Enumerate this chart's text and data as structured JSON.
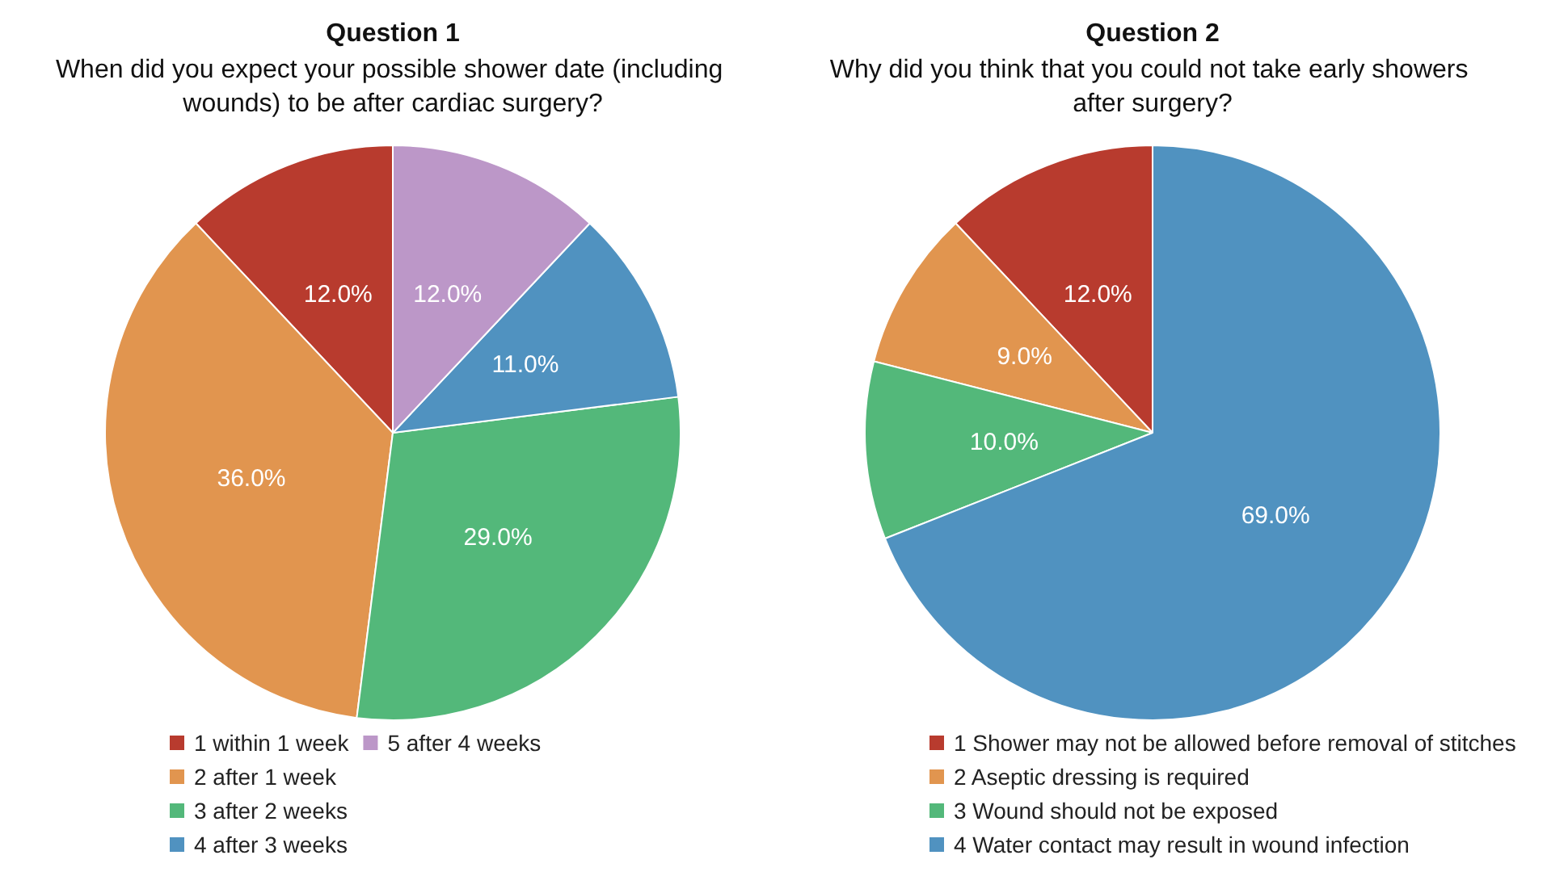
{
  "chart_data": [
    {
      "type": "pie",
      "title": "Question 1",
      "subtitle": "When did you expect your possible shower date (including wounds) to be after cardiac surgery?",
      "categories": [
        "1 within 1 week",
        "2 after 1 week",
        "3 after 2 weeks",
        "4 after 3 weeks",
        "5 after 4 weeks"
      ],
      "values": [
        12,
        36,
        29,
        11,
        12
      ],
      "colors": [
        "#b83b2e",
        "#e1954f",
        "#53b87a",
        "#5092c0",
        "#bc97c8"
      ],
      "value_labels": [
        "12.0%",
        "36.0%",
        "29.0%",
        "11.0%",
        "12.0%"
      ],
      "legend": "bottom"
    },
    {
      "type": "pie",
      "title": "Question 2",
      "subtitle": "Why did you think that you could not take early showers after surgery?",
      "categories": [
        "1 Shower may not be allowed before removal of stitches",
        "2 Aseptic dressing is required",
        "3 Wound should not be exposed",
        "4 Water contact may result in wound infection"
      ],
      "values": [
        12,
        9,
        10,
        69
      ],
      "colors": [
        "#b83b2e",
        "#e1954f",
        "#53b87a",
        "#5092c0"
      ],
      "value_labels": [
        "12.0%",
        "9.0%",
        "10.0%",
        "69.0%"
      ],
      "legend": "bottom"
    }
  ]
}
